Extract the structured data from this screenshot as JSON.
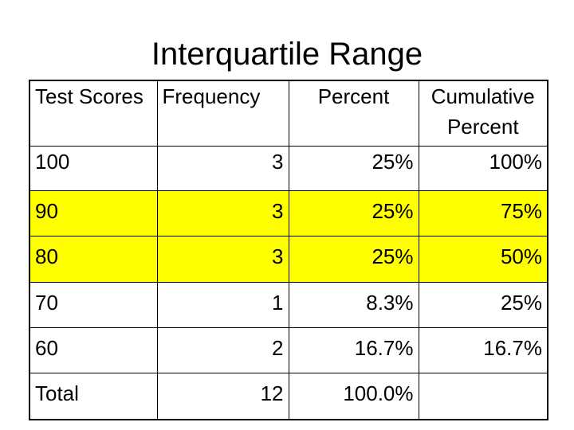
{
  "title": "Interquartile Range",
  "table": {
    "headers": {
      "scores": "Test Scores",
      "frequency": "Frequency",
      "percent": "Percent",
      "cumulative_line1": "Cumulative",
      "cumulative_line2": "Percent"
    },
    "rows": [
      {
        "score": "100",
        "frequency": "3",
        "percent": "25%",
        "cumulative": "100%",
        "highlighted": false
      },
      {
        "score": "90",
        "frequency": "3",
        "percent": "25%",
        "cumulative": "75%",
        "highlighted": true
      },
      {
        "score": "80",
        "frequency": "3",
        "percent": "25%",
        "cumulative": "50%",
        "highlighted": true
      },
      {
        "score": "70",
        "frequency": "1",
        "percent": "8.3%",
        "cumulative": "25%",
        "highlighted": false
      },
      {
        "score": "60",
        "frequency": "2",
        "percent": "16.7%",
        "cumulative": "16.7%",
        "highlighted": false
      }
    ],
    "total": {
      "label": "Total",
      "frequency": "12",
      "percent": "100.0%",
      "cumulative": ""
    }
  },
  "colors": {
    "highlight": "#ffff00",
    "border": "#000000",
    "background": "#ffffff"
  }
}
